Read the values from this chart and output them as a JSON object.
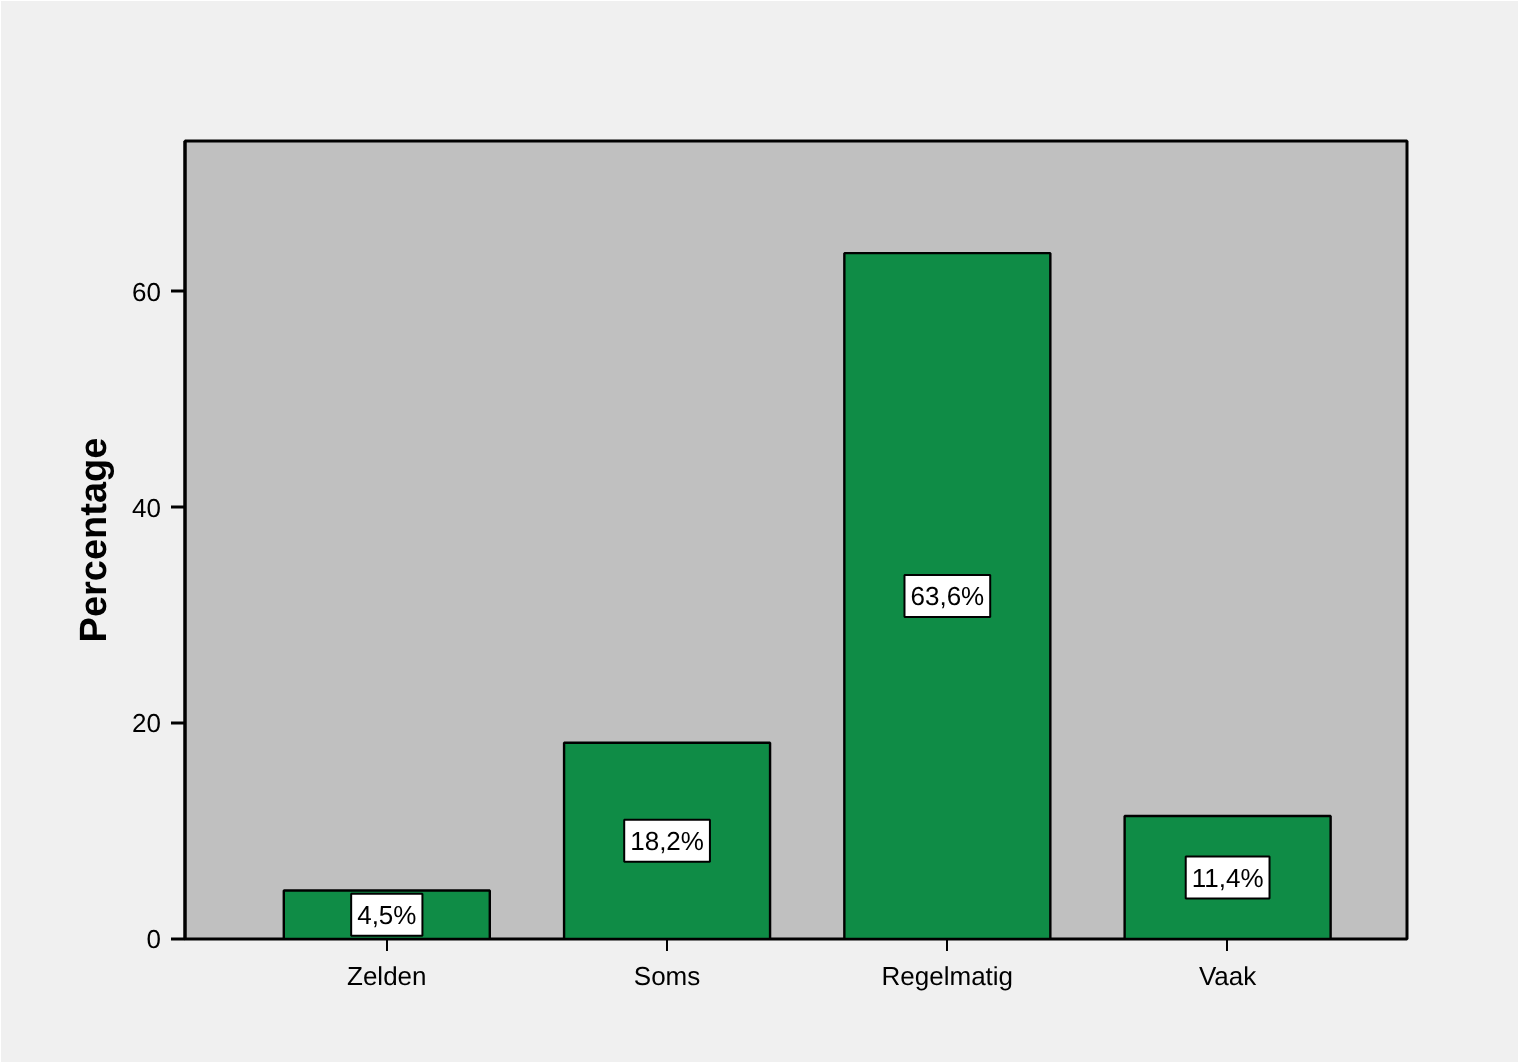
{
  "chart_data": {
    "type": "bar",
    "ylabel": "Percentage",
    "categories": [
      "Zelden",
      "Soms",
      "Regelmatig",
      "Vaak"
    ],
    "values": [
      4.5,
      18.2,
      63.6,
      11.4
    ],
    "color": "#0f8c46",
    "value_labels": [
      "4,5%",
      "18,2%",
      "63,6%",
      "11,4%"
    ],
    "ylim": [
      0,
      74
    ],
    "yticks": [
      0,
      20,
      40,
      60
    ],
    "grid": false
  }
}
